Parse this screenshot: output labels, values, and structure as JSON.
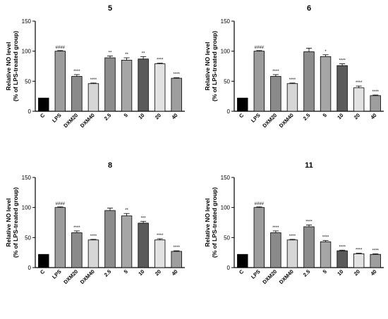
{
  "chart_data": [
    {
      "type": "bar",
      "title": "5",
      "ylabel": [
        "Relative NO level",
        "(% of LPS-treated group)"
      ],
      "ylim": [
        0,
        150
      ],
      "yticks": [
        0,
        50,
        100,
        150
      ],
      "categories": [
        "C",
        "LPS",
        "DXM20",
        "DXM40",
        "2.5",
        "5",
        "10",
        "20",
        "40"
      ],
      "values": [
        22,
        100,
        58,
        46,
        89,
        85,
        87,
        79,
        55
      ],
      "errors": [
        0,
        1,
        3,
        1,
        3,
        4,
        4,
        1,
        1
      ],
      "significance": [
        "",
        "####",
        "****",
        "****",
        "**",
        "**",
        "**",
        "****",
        "****"
      ],
      "bar_colors": [
        "#000000",
        "#9c9c9c",
        "#8a8a8a",
        "#d6d6d6",
        "#8c8c8c",
        "#a6a6a6",
        "#5a5a5a",
        "#e2e2e2",
        "#9e9e9e"
      ]
    },
    {
      "type": "bar",
      "title": "6",
      "ylabel": [
        "Relative NO level",
        "(% of LPS-treated group)"
      ],
      "ylim": [
        0,
        150
      ],
      "yticks": [
        0,
        50,
        100,
        150
      ],
      "categories": [
        "C",
        "LPS",
        "DXM20",
        "DXM40",
        "2.5",
        "5",
        "10",
        "20",
        "40"
      ],
      "values": [
        22,
        100,
        58,
        46,
        99,
        91,
        76,
        39,
        26
      ],
      "errors": [
        0,
        1,
        3,
        1,
        6,
        3,
        3,
        3,
        1
      ],
      "significance": [
        "",
        "####",
        "****",
        "****",
        "",
        "*",
        "****",
        "****",
        "****"
      ],
      "bar_colors": [
        "#000000",
        "#9c9c9c",
        "#8a8a8a",
        "#d6d6d6",
        "#8c8c8c",
        "#a6a6a6",
        "#5a5a5a",
        "#e2e2e2",
        "#9e9e9e"
      ]
    },
    {
      "type": "bar",
      "title": "8",
      "ylabel": [
        "Relative NO level",
        "(% of LPS-treated group)"
      ],
      "ylim": [
        0,
        150
      ],
      "yticks": [
        0,
        50,
        100,
        150
      ],
      "categories": [
        "C",
        "LPS",
        "DXM20",
        "DXM40",
        "2.5",
        "5",
        "10",
        "20",
        "40"
      ],
      "values": [
        22,
        100,
        58,
        46,
        95,
        86,
        74,
        46,
        27
      ],
      "errors": [
        0,
        1,
        3,
        1,
        4,
        4,
        3,
        2,
        1
      ],
      "significance": [
        "",
        "####",
        "****",
        "****",
        "",
        "**",
        "***",
        "****",
        "****"
      ],
      "bar_colors": [
        "#000000",
        "#9c9c9c",
        "#8a8a8a",
        "#d6d6d6",
        "#8c8c8c",
        "#a6a6a6",
        "#5a5a5a",
        "#e2e2e2",
        "#9e9e9e"
      ]
    },
    {
      "type": "bar",
      "title": "11",
      "ylabel": [
        "Relative NO level",
        "(% of LPS-treated group)"
      ],
      "ylim": [
        0,
        150
      ],
      "yticks": [
        0,
        50,
        100,
        150
      ],
      "categories": [
        "C",
        "LPS",
        "DXM20",
        "DXM40",
        "2.5",
        "5",
        "10",
        "20",
        "40"
      ],
      "values": [
        22,
        100,
        58,
        46,
        68,
        43,
        28,
        23,
        22
      ],
      "errors": [
        0,
        1,
        3,
        1,
        3,
        2,
        1,
        1,
        1
      ],
      "significance": [
        "",
        "####",
        "****",
        "****",
        "****",
        "****",
        "****",
        "****",
        "****"
      ],
      "bar_colors": [
        "#000000",
        "#9c9c9c",
        "#8a8a8a",
        "#d6d6d6",
        "#8c8c8c",
        "#a6a6a6",
        "#5a5a5a",
        "#e2e2e2",
        "#9e9e9e"
      ]
    }
  ]
}
